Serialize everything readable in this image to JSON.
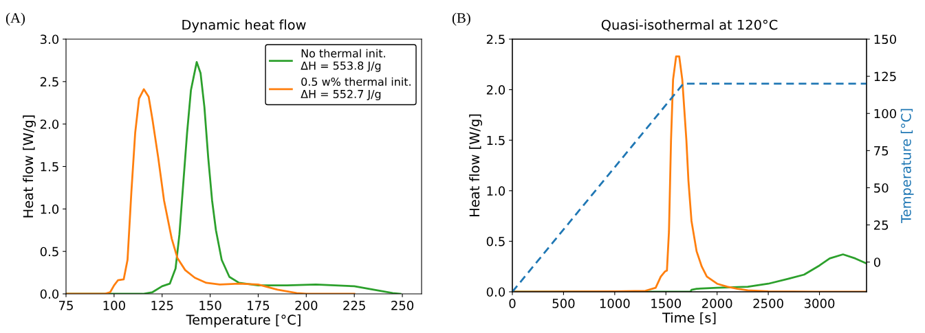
{
  "chart_data": [
    {
      "type": "line",
      "title": "Dynamic heat flow",
      "xlabel": "Temperature [°C]",
      "ylabel": "Heat flow [W/g]",
      "annotations": [
        "(A)"
      ],
      "xlim": [
        75,
        260
      ],
      "xticks": [
        75,
        100,
        125,
        150,
        175,
        200,
        225,
        250
      ],
      "ylim": [
        0,
        3
      ],
      "yticks": [
        {
          "value": 0,
          "label": "0.0"
        },
        0.5,
        {
          "value": 1,
          "label": "1.0"
        },
        1.5,
        {
          "value": 2,
          "label": "2.0"
        },
        2.5,
        {
          "value": 3,
          "label": "3.0"
        }
      ],
      "grid": false,
      "legend": "top right",
      "line_style": "solid",
      "marker": "none",
      "series": [
        {
          "name": "No thermal init.\nΔH = 553.8 J/g",
          "color": "#2ca02c",
          "x": [
            75,
            100,
            115,
            120,
            125,
            129,
            132,
            134,
            136,
            138,
            140,
            143,
            145,
            147,
            149,
            151,
            153,
            156,
            160,
            165,
            175,
            190,
            205,
            215,
            225,
            235,
            245,
            249
          ],
          "values": [
            0,
            0,
            0,
            0.02,
            0.09,
            0.12,
            0.3,
            0.7,
            1.3,
            1.9,
            2.4,
            2.73,
            2.6,
            2.2,
            1.6,
            1.1,
            0.75,
            0.4,
            0.2,
            0.13,
            0.1,
            0.1,
            0.11,
            0.1,
            0.09,
            0.05,
            0.01,
            0
          ]
        },
        {
          "name": "0.5 w% thermal init.\nΔH = 552.7 J/g",
          "color": "#ff7f0e",
          "x": [
            75,
            95,
            98,
            100,
            102,
            105,
            107,
            109,
            111,
            113,
            115.5,
            118,
            120,
            123,
            126,
            130,
            133,
            137,
            142,
            148,
            155,
            165,
            175,
            180,
            185,
            195,
            200,
            225
          ],
          "values": [
            0,
            0,
            0.02,
            0.1,
            0.16,
            0.17,
            0.4,
            1.2,
            1.9,
            2.3,
            2.41,
            2.32,
            2.05,
            1.6,
            1.1,
            0.65,
            0.42,
            0.28,
            0.19,
            0.13,
            0.11,
            0.12,
            0.11,
            0.08,
            0.05,
            0.01,
            0,
            0
          ]
        }
      ]
    },
    {
      "type": "line",
      "title": "Quasi-isothermal at 120°C",
      "xlabel": "Time [s]",
      "ylabel": "Heat flow [W/g]",
      "y2label": "Temperature [°C]",
      "annotations": [
        "(B)"
      ],
      "xlim": [
        0,
        3460
      ],
      "xticks": [
        0,
        500,
        1000,
        1500,
        2000,
        2500,
        3000
      ],
      "ylim": [
        0,
        2.5
      ],
      "yticks": [
        {
          "value": 0,
          "label": "0.0"
        },
        0.5,
        {
          "value": 1,
          "label": "1.0"
        },
        1.5,
        {
          "value": 2,
          "label": "2.0"
        },
        2.5
      ],
      "y2lim": [
        -20,
        150
      ],
      "y2ticks": [
        0,
        25,
        50,
        75,
        100,
        125,
        150
      ],
      "grid": false,
      "legend": false,
      "marker": "none",
      "series": [
        {
          "color": "#2ca02c",
          "x": [
            0,
            1740,
            1750,
            1800,
            2000,
            2300,
            2500,
            2700,
            2850,
            3000,
            3100,
            3230,
            3350,
            3460
          ],
          "values": [
            0,
            0,
            0.02,
            0.03,
            0.04,
            0.05,
            0.08,
            0.13,
            0.17,
            0.26,
            0.33,
            0.37,
            0.33,
            0.28
          ]
        },
        {
          "color": "#ff7f0e",
          "x": [
            0,
            1000,
            1300,
            1400,
            1450,
            1490,
            1510,
            1530,
            1550,
            1570,
            1600,
            1630,
            1660,
            1680,
            1700,
            1720,
            1750,
            1800,
            1850,
            1900,
            2000,
            2100,
            2200,
            2300,
            2500,
            3000,
            3460
          ],
          "values": [
            0,
            0.005,
            0.01,
            0.04,
            0.15,
            0.2,
            0.21,
            0.6,
            1.5,
            2.1,
            2.33,
            2.33,
            2.1,
            1.8,
            1.5,
            1.1,
            0.7,
            0.4,
            0.25,
            0.15,
            0.08,
            0.05,
            0.03,
            0.015,
            0.005,
            0,
            0
          ]
        },
        {
          "color": "#1f77b4",
          "axis": "y2",
          "line_style": "dashed",
          "x": [
            0,
            1670,
            3460
          ],
          "values": [
            -20,
            120,
            120
          ]
        }
      ]
    }
  ]
}
